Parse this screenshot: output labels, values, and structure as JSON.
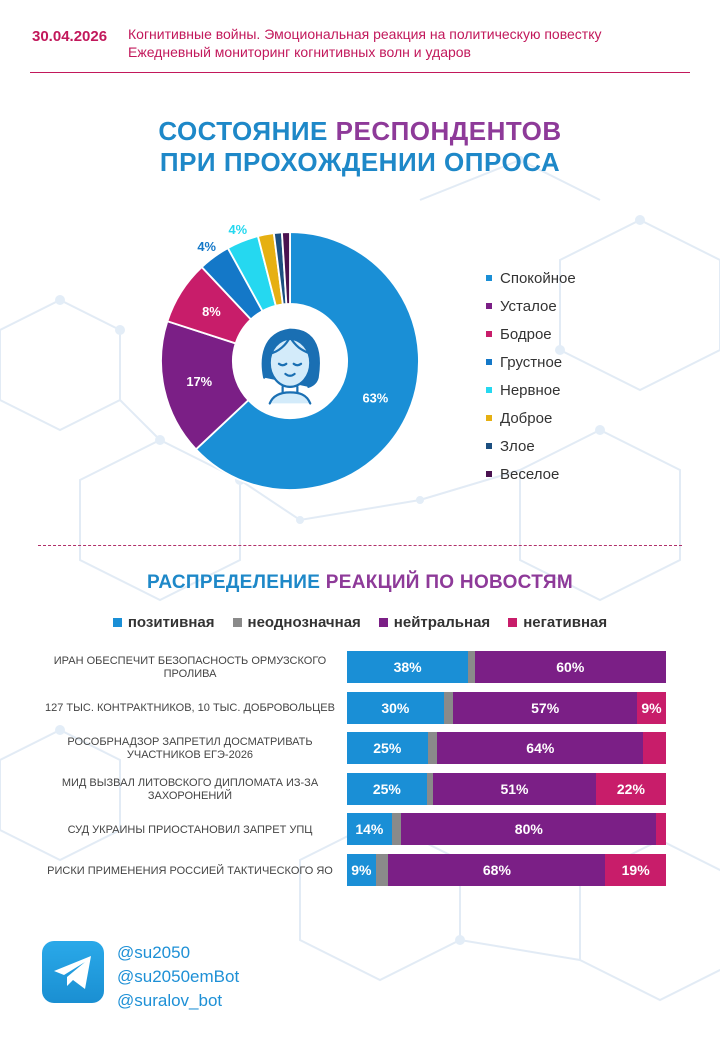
{
  "header": {
    "date": "30.04.2026",
    "line1": "Когнитивные войны. Эмоциональная реакция на политическую повестку",
    "line2": "Ежедневный мониторинг когнитивных волн и ударов"
  },
  "title": {
    "part1": "СОСТОЯНИЕ",
    "part2": "РЕСПОНДЕНТОВ",
    "line2": "ПРИ ПРОХОЖДЕНИИ ОПРОСА"
  },
  "section2": {
    "part1": "РАСПРЕДЕЛЕНИЕ",
    "part2": "РЕАКЦИЙ ПО НОВОСТЯМ"
  },
  "chart_data": [
    {
      "type": "pie",
      "title": "СОСТОЯНИЕ РЕСПОНДЕНТОВ ПРИ ПРОХОЖДЕНИИ ОПРОСА",
      "donut": true,
      "legend_position": "right",
      "slices": [
        {
          "label": "Спокойное",
          "value": 63,
          "color": "#1a8fd6",
          "shown_label": "63%"
        },
        {
          "label": "Усталое",
          "value": 17,
          "color": "#7b1f86",
          "shown_label": "17%"
        },
        {
          "label": "Бодрое",
          "value": 8,
          "color": "#c81d6a",
          "shown_label": "8%"
        },
        {
          "label": "Грустное",
          "value": 4,
          "color": "#1478c8",
          "shown_label": "4%"
        },
        {
          "label": "Нервное",
          "value": 4,
          "color": "#25d8f0",
          "shown_label": "4%"
        },
        {
          "label": "Доброе",
          "value": 2,
          "color": "#e6b012",
          "shown_label": ""
        },
        {
          "label": "Злое",
          "value": 1,
          "color": "#1c4f80",
          "shown_label": ""
        },
        {
          "label": "Веселое",
          "value": 1,
          "color": "#4a1250",
          "shown_label": ""
        }
      ]
    },
    {
      "type": "bar",
      "orientation": "horizontal",
      "stacked": true,
      "title": "РАСПРЕДЕЛЕНИЕ РЕАКЦИЙ ПО НОВОСТЯМ",
      "legend_position": "top",
      "xlim": [
        0,
        100
      ],
      "categories": [
        "Иран обеспечит безопасность Ормузского пролива",
        "127 тыс. контрактников, 10 тыс. добровольцев",
        "Рособрнадзор запретил досматривать участников ЕГЭ-2026",
        "МИД вызвал литовского дипломата из-за захоронений",
        "Суд Украины приостановил запрет УПЦ",
        "Риски применения Россией тактического ЯО"
      ],
      "series": [
        {
          "name": "позитивная",
          "color": "#1a8fd6",
          "values": [
            38,
            30,
            25,
            25,
            14,
            9
          ],
          "labels": [
            "38%",
            "30%",
            "25%",
            "25%",
            "14%",
            "9%"
          ]
        },
        {
          "name": "неоднозначная",
          "color": "#8a8a8a",
          "values": [
            2,
            3,
            3,
            2,
            3,
            4
          ],
          "labels": [
            "",
            "",
            "",
            "",
            "",
            ""
          ]
        },
        {
          "name": "нейтральная",
          "color": "#7b1f86",
          "values": [
            60,
            57,
            64,
            51,
            80,
            68
          ],
          "labels": [
            "60%",
            "57%",
            "64%",
            "51%",
            "80%",
            "68%"
          ]
        },
        {
          "name": "негативная",
          "color": "#c81d6a",
          "values": [
            0,
            9,
            7,
            22,
            3,
            19
          ],
          "labels": [
            "",
            "9%",
            "",
            "22%",
            "",
            "19%"
          ]
        }
      ]
    }
  ],
  "footer": {
    "handles": [
      "@su2050",
      "@su2050emBot",
      "@suralov_bot"
    ]
  }
}
